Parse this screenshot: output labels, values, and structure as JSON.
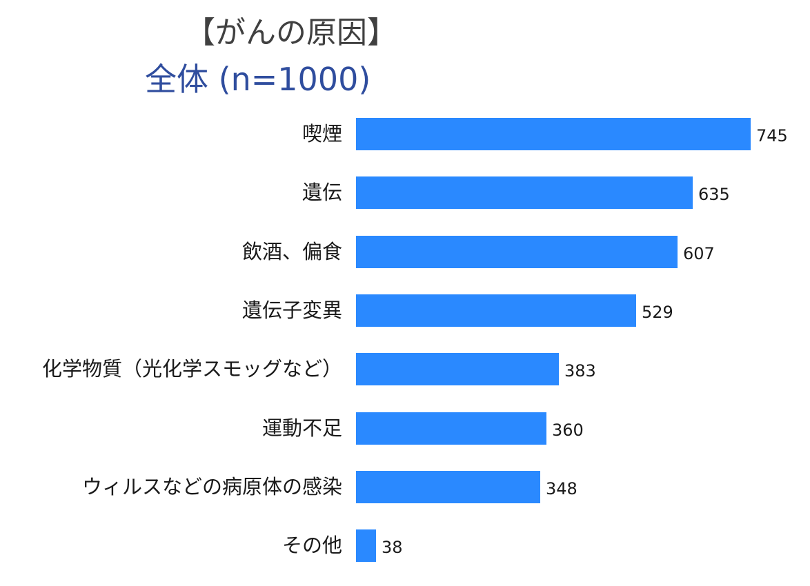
{
  "title": "【がんの原因】",
  "subtitle": "全体 (n=1000)",
  "colors": {
    "bar": "#2a89ff",
    "subtitle": "#2f4d9e",
    "title": "#404040"
  },
  "chart_data": {
    "type": "bar",
    "orientation": "horizontal",
    "title": "【がんの原因】",
    "subtitle": "全体 (n=1000)",
    "categories": [
      "喫煙",
      "遺伝",
      "飲酒、偏食",
      "遺伝子変異",
      "化学物質（光化学スモッグなど）",
      "運動不足",
      "ウィルスなどの病原体の感染",
      "その他"
    ],
    "values": [
      745,
      635,
      607,
      529,
      383,
      360,
      348,
      38
    ],
    "xlabel": "",
    "ylabel": "",
    "grid": false,
    "legend": null,
    "data_labels": true
  }
}
